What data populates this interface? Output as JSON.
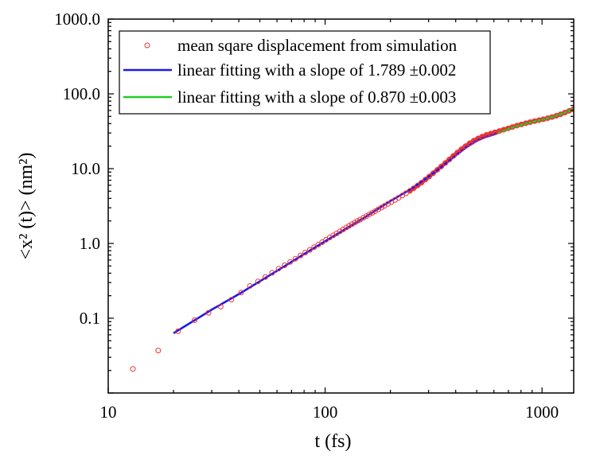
{
  "chart_data": {
    "type": "scatter",
    "title": "",
    "xlabel": "t (fs)",
    "ylabel": "<x² (t)> (nm²)",
    "x_scale": "log",
    "y_scale": "log",
    "xlim": [
      10,
      1400
    ],
    "ylim": [
      0.01,
      1000
    ],
    "x_ticks": [
      {
        "value": 10,
        "label": "10"
      },
      {
        "value": 100,
        "label": "100"
      },
      {
        "value": 1000,
        "label": "1000"
      }
    ],
    "y_ticks": [
      {
        "value": 0.1,
        "label": "0.1"
      },
      {
        "value": 1,
        "label": "1.0"
      },
      {
        "value": 10,
        "label": "10.0"
      },
      {
        "value": 100,
        "label": "100.0"
      },
      {
        "value": 1000,
        "label": "1000.0"
      }
    ],
    "legend_position": "top",
    "series": [
      {
        "name": "mean sqare displacement from simulation",
        "kind": "markers",
        "color": "#ee3333",
        "points": [
          [
            13,
            0.021
          ],
          [
            17,
            0.037
          ],
          [
            21,
            0.067
          ],
          [
            25,
            0.094
          ],
          [
            29,
            0.118
          ],
          [
            33,
            0.143
          ],
          [
            37,
            0.177
          ],
          [
            41,
            0.22
          ],
          [
            45,
            0.27
          ],
          [
            49,
            0.31
          ],
          [
            53,
            0.355
          ],
          [
            57,
            0.405
          ],
          [
            61,
            0.46
          ],
          [
            65,
            0.51
          ],
          [
            69,
            0.565
          ],
          [
            73,
            0.625
          ],
          [
            77,
            0.69
          ],
          [
            81,
            0.755
          ],
          [
            85,
            0.82
          ],
          [
            89,
            0.89
          ],
          [
            93,
            0.965
          ],
          [
            97,
            1.04
          ],
          [
            101,
            1.12
          ],
          [
            105,
            1.2
          ],
          [
            109,
            1.28
          ],
          [
            113,
            1.36
          ],
          [
            117,
            1.45
          ],
          [
            121,
            1.54
          ],
          [
            125,
            1.63
          ],
          [
            129,
            1.72
          ],
          [
            133,
            1.81
          ],
          [
            137,
            1.9
          ],
          [
            141,
            2.0
          ],
          [
            145,
            2.08
          ],
          [
            150,
            2.2
          ],
          [
            155,
            2.32
          ],
          [
            160,
            2.45
          ],
          [
            165,
            2.57
          ],
          [
            170,
            2.7
          ],
          [
            176,
            2.86
          ],
          [
            182,
            3.02
          ],
          [
            188,
            3.18
          ],
          [
            195,
            3.38
          ],
          [
            202,
            3.58
          ],
          [
            210,
            3.82
          ],
          [
            218,
            4.07
          ],
          [
            227,
            4.37
          ],
          [
            236,
            4.68
          ],
          [
            246,
            5.05
          ],
          [
            256,
            5.46
          ],
          [
            267,
            5.96
          ],
          [
            278,
            6.5
          ],
          [
            290,
            7.15
          ],
          [
            302,
            7.85
          ],
          [
            315,
            8.7
          ],
          [
            329,
            9.65
          ],
          [
            343,
            10.7
          ],
          [
            358,
            11.9
          ],
          [
            374,
            13.3
          ],
          [
            390,
            14.8
          ],
          [
            407,
            16.4
          ],
          [
            425,
            18.2
          ],
          [
            444,
            20.0
          ],
          [
            464,
            21.9
          ],
          [
            485,
            23.7
          ],
          [
            507,
            25.4
          ],
          [
            530,
            26.9
          ],
          [
            554,
            28.3
          ],
          [
            580,
            29.5
          ],
          [
            607,
            30.7
          ],
          [
            636,
            31.9
          ],
          [
            666,
            33.2
          ],
          [
            698,
            34.6
          ],
          [
            731,
            36.1
          ],
          [
            766,
            37.6
          ],
          [
            803,
            39.1
          ],
          [
            842,
            40.5
          ],
          [
            882,
            41.9
          ],
          [
            924,
            43.2
          ],
          [
            968,
            44.5
          ],
          [
            1014,
            45.8
          ],
          [
            1062,
            47.3
          ],
          [
            1112,
            49.0
          ],
          [
            1164,
            51.0
          ],
          [
            1218,
            53.4
          ],
          [
            1275,
            56.2
          ],
          [
            1334,
            59.3
          ],
          [
            1395,
            62.5
          ]
        ]
      },
      {
        "name": "linear fitting with a slope of 1.789  ±0.002",
        "kind": "line",
        "color": "#1a1aee",
        "points": [
          [
            20,
            0.063
          ],
          [
            30,
            0.13
          ],
          [
            40,
            0.21
          ],
          [
            60,
            0.43
          ],
          [
            80,
            0.72
          ],
          [
            100,
            1.07
          ],
          [
            150,
            2.17
          ],
          [
            200,
            3.7
          ],
          [
            250,
            5.4
          ],
          [
            300,
            7.8
          ],
          [
            350,
            11.0
          ],
          [
            400,
            15.0
          ],
          [
            450,
            19.5
          ],
          [
            500,
            23.5
          ],
          [
            550,
            26.5
          ],
          [
            620,
            29.5
          ]
        ]
      },
      {
        "name": "linear fitting with a slope of 0.870  ±0.003",
        "kind": "line",
        "color": "#22cc22",
        "points": [
          [
            620,
            29.5
          ],
          [
            700,
            34.0
          ],
          [
            800,
            38.5
          ],
          [
            900,
            42.0
          ],
          [
            1000,
            45.0
          ],
          [
            1100,
            48.5
          ],
          [
            1200,
            52.5
          ],
          [
            1300,
            57.5
          ],
          [
            1400,
            63.5
          ]
        ]
      }
    ]
  }
}
